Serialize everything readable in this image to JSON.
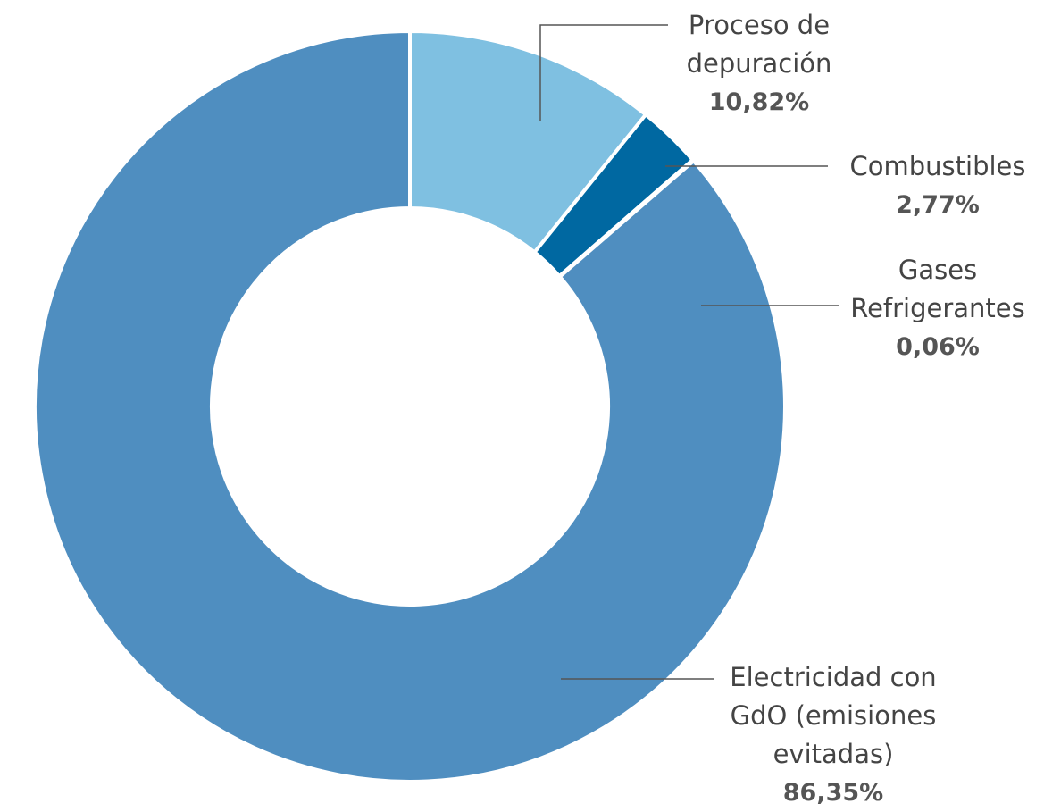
{
  "chart_data": {
    "type": "donut",
    "categories": [
      "Proceso de\ndepuración",
      "Combustibles",
      "Gases\nRefrigerantes",
      "Electricidad con\nGdO (emisiones\nevitadas)"
    ],
    "values": [
      10.82,
      2.77,
      0.06,
      86.35
    ],
    "value_labels": [
      "10,82%",
      "2,77%",
      "0,06%",
      "86,35%"
    ],
    "colors": [
      "#7fc0e1",
      "#0068a1",
      "#4f8fc0",
      "#4f8ec0"
    ]
  }
}
